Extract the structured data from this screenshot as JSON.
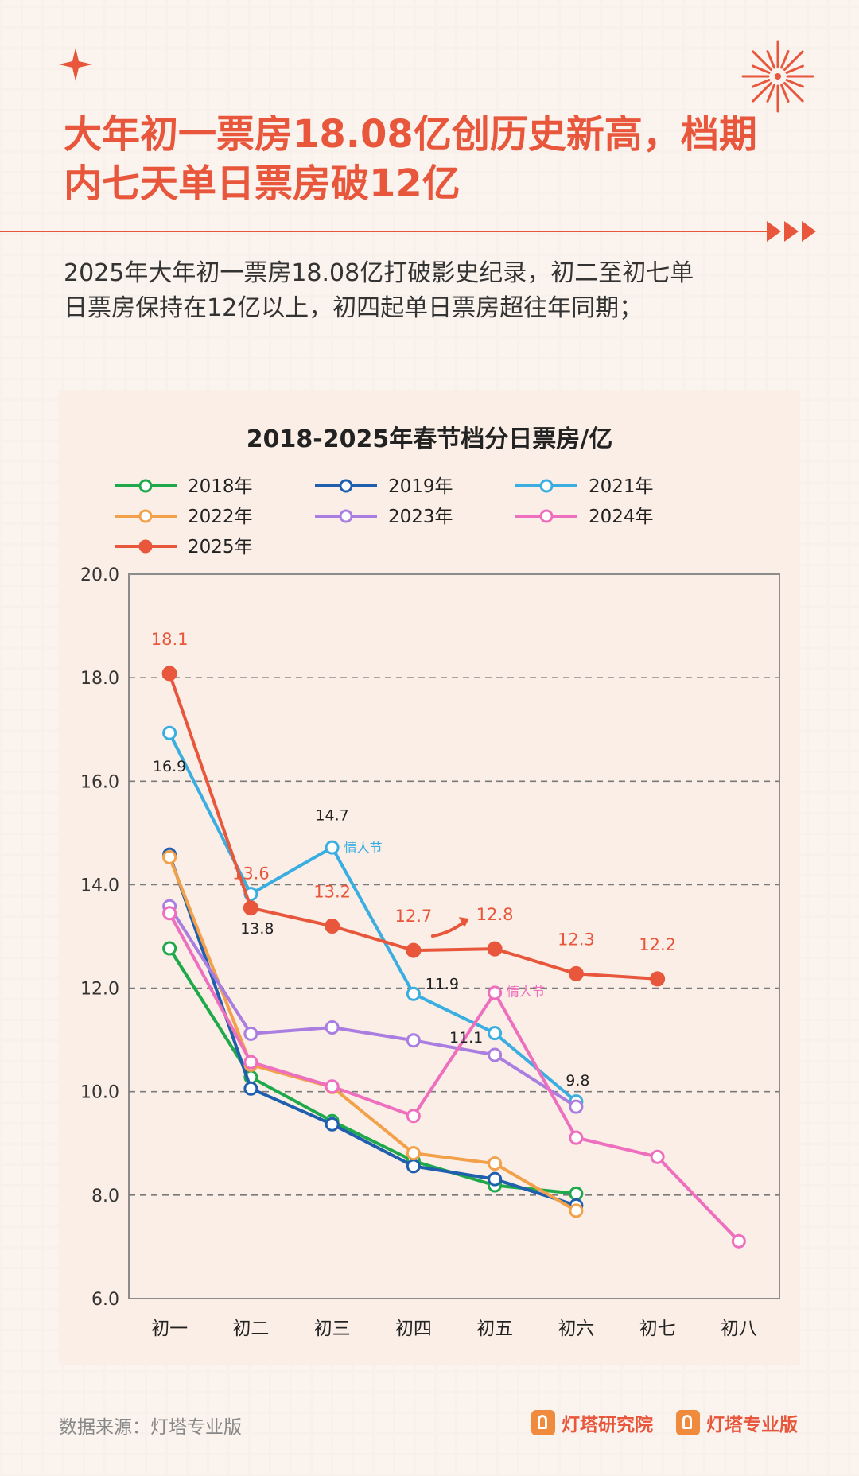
{
  "headline": {
    "line1": "大年初一票房18.08亿创历史新高，档期",
    "line2": "内七天单日票房破12亿"
  },
  "lead": {
    "line1": "2025年大年初一票房18.08亿打破影史纪录，初二至初七单",
    "line2": "日票房保持在12亿以上，初四起单日票房超往年同期；"
  },
  "footer": {
    "source": "数据来源：灯塔专业版",
    "logo1": "灯塔研究院",
    "logo2": "灯塔专业版"
  },
  "colors": {
    "accent": "#e8563c",
    "s2018": "#1fa94b",
    "s2019": "#1f5fae",
    "s2021": "#3aaee0",
    "s2022": "#f2a04a",
    "s2023": "#a97ee0",
    "s2024": "#ee6fbe",
    "s2025": "#e8563c"
  },
  "chart_data": {
    "type": "line",
    "title": "2018-2025年春节档分日票房/亿",
    "categories": [
      "初一",
      "初二",
      "初三",
      "初四",
      "初五",
      "初六",
      "初七",
      "初八"
    ],
    "ylim": [
      6.0,
      20.0
    ],
    "yticks": [
      "6.0",
      "8.0",
      "10.0",
      "12.0",
      "14.0",
      "16.0",
      "18.0",
      "20.0"
    ],
    "grid": "dashed-horizontal",
    "legend_position": "top",
    "series": [
      {
        "name": "2018年",
        "values": [
          12.77,
          10.28,
          9.43,
          8.66,
          8.19,
          8.03,
          null,
          null
        ],
        "filled": false
      },
      {
        "name": "2019年",
        "values": [
          14.58,
          10.06,
          9.37,
          8.56,
          8.31,
          7.8,
          null,
          null
        ],
        "filled": false
      },
      {
        "name": "2021年",
        "values": [
          16.93,
          13.82,
          14.72,
          11.89,
          11.13,
          9.81,
          null,
          null
        ],
        "filled": false
      },
      {
        "name": "2022年",
        "values": [
          14.53,
          10.52,
          10.09,
          8.81,
          8.61,
          7.7,
          null,
          null
        ],
        "filled": false
      },
      {
        "name": "2023年",
        "values": [
          13.58,
          11.12,
          11.24,
          10.99,
          10.71,
          9.71,
          null,
          null
        ],
        "filled": false
      },
      {
        "name": "2024年",
        "values": [
          13.45,
          10.57,
          10.1,
          9.53,
          11.91,
          9.11,
          8.74,
          7.11
        ],
        "filled": false
      },
      {
        "name": "2025年",
        "values": [
          18.08,
          13.55,
          13.2,
          12.73,
          12.76,
          12.28,
          12.18,
          null
        ],
        "filled": true
      }
    ],
    "labels_2025": [
      "18.1",
      "13.6",
      "13.2",
      "12.7",
      "12.8",
      "12.3",
      "12.2"
    ],
    "labels_2021": [
      "16.9",
      "13.8",
      "14.7",
      "11.9",
      "11.1",
      "9.8"
    ],
    "annotation_2021": "情人节",
    "annotation_2024": "情人节"
  }
}
